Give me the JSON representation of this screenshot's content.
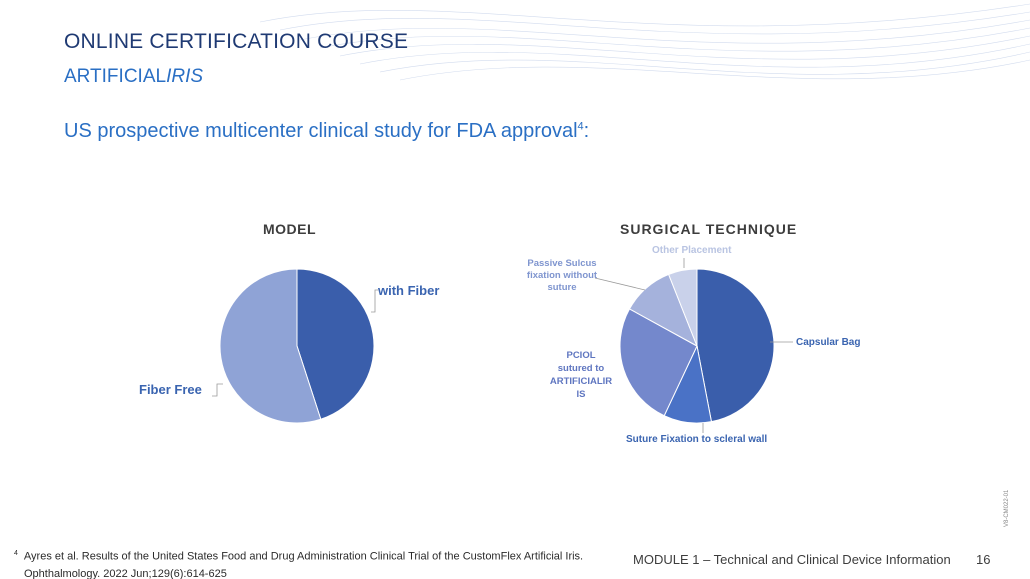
{
  "header": {
    "title": "ONLINE CERTIFICATION COURSE",
    "subtitle_plain": "ARTIFICIAL",
    "subtitle_italic": "IRIS"
  },
  "study": {
    "title": "US prospective multicenter clinical study for FDA approval",
    "superscript": "4",
    "suffix": ":"
  },
  "chart_data": [
    {
      "type": "pie",
      "title": "MODEL",
      "slices": [
        {
          "label": "with Fiber",
          "value": 45,
          "color": "#3a5eab"
        },
        {
          "label": "Fiber Free",
          "value": 55,
          "color": "#8fa3d6"
        }
      ]
    },
    {
      "type": "pie",
      "title": "SURGICAL  TECHNIQUE",
      "slices": [
        {
          "label": "Capsular Bag",
          "value": 47,
          "color": "#3a5eab"
        },
        {
          "label": "Suture Fixation to scleral wall",
          "value": 10,
          "color": "#4a72c6"
        },
        {
          "label": "PCIOL sutured to ARTIFICIALIR IS",
          "value": 26,
          "color": "#7488cc"
        },
        {
          "label": "Passive Sulcus fixation without suture",
          "value": 11,
          "color": "#a5b2dc"
        },
        {
          "label": "Other Placement",
          "value": 6,
          "color": "#c9d1ea"
        }
      ]
    }
  ],
  "label_lines": {
    "fiber_free": "Fiber Free",
    "with_fiber": "with Fiber",
    "capsular_bag": "Capsular Bag",
    "suture_fixation": "Suture Fixation to scleral wall",
    "pciol": [
      "PCIOL",
      "sutured to",
      "ARTIFICIALIR",
      "IS"
    ],
    "passive": [
      "Passive Sulcus",
      "fixation without",
      "suture"
    ],
    "other": "Other Placement"
  },
  "footnote": {
    "marker": "4",
    "line1": "Ayres et al. Results of the United States Food and Drug Administration Clinical Trial of the CustomFlex Artificial Iris.",
    "line2": "Ophthalmology. 2022 Jun;129(6):614-625"
  },
  "footer": {
    "module": "MODULE 1 – Technical and Clinical Device Information",
    "page": "16",
    "code": "V8-CM022-01"
  },
  "colors": {
    "navy": "#1f3a73",
    "accent_blue": "#2a6fc4",
    "label_blue": "#3a64b0",
    "pale_label": "#b9c4e2"
  }
}
